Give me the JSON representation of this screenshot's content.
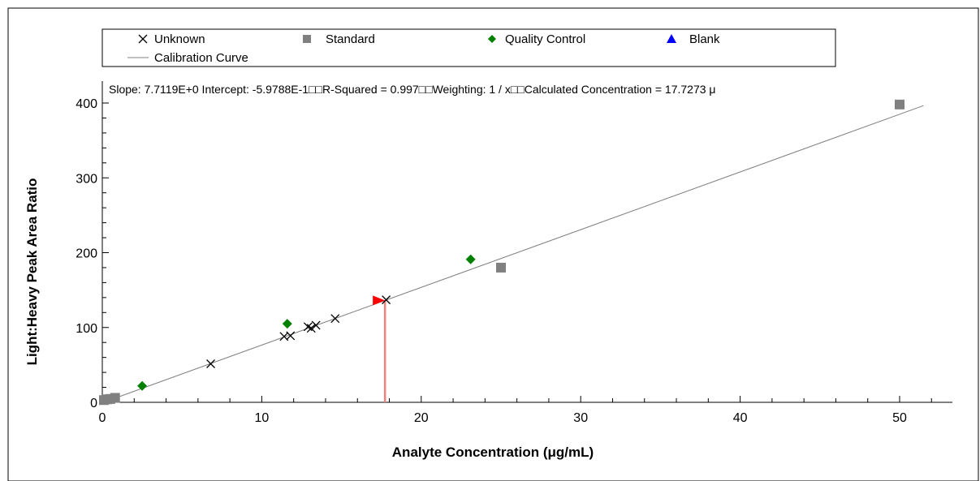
{
  "chart_data": {
    "type": "scatter",
    "xlabel": "Analyte Concentration (μg/mL)",
    "ylabel": "Light:Heavy Peak Area Ratio",
    "xlim": [
      0,
      53
    ],
    "ylim": [
      0,
      415
    ],
    "x_ticks": [
      0,
      10,
      20,
      30,
      40,
      50
    ],
    "y_ticks": [
      0,
      100,
      200,
      300,
      400
    ],
    "grid": false,
    "legend_placement": "top",
    "legend": {
      "unknown": "Unknown",
      "standard": "Standard",
      "quality_control": "Quality Control",
      "blank": "Blank",
      "calibration_curve": "Calibration Curve"
    },
    "annotation": "Slope: 7.7119E+0 Intercept: -5.9788E-1□□R-Squared = 0.997□□Weighting: 1 / x□□Calculated Concentration = 17.7273 μ",
    "calibration_curve": {
      "slope": 7.7119,
      "intercept": -0.59788,
      "x_range": [
        0.08,
        51.5
      ]
    },
    "calculated_concentration": 17.7273,
    "series": [
      {
        "name": "Unknown",
        "marker": "x",
        "color": "#000000",
        "points": [
          [
            6.8,
            51.5
          ],
          [
            11.4,
            88
          ],
          [
            11.8,
            89
          ],
          [
            12.9,
            101
          ],
          [
            13.1,
            99
          ],
          [
            13.4,
            103
          ],
          [
            14.6,
            112
          ],
          [
            17.8,
            137
          ]
        ]
      },
      {
        "name": "Standard",
        "marker": "square",
        "color": "#808080",
        "points": [
          [
            0.1,
            3
          ],
          [
            0.3,
            4
          ],
          [
            0.5,
            4.5
          ],
          [
            0.8,
            6
          ],
          [
            25,
            180
          ],
          [
            50,
            398
          ]
        ]
      },
      {
        "name": "Quality Control",
        "marker": "diamond",
        "color": "#008000",
        "points": [
          [
            2.5,
            22
          ],
          [
            11.6,
            105
          ],
          [
            23.1,
            191
          ]
        ]
      },
      {
        "name": "Blank",
        "marker": "triangle",
        "color": "#0000ff",
        "points": []
      }
    ],
    "marker_line_color": "#f08080",
    "marker_arrow_color": "#ff0000",
    "curve_color": "#808080"
  }
}
